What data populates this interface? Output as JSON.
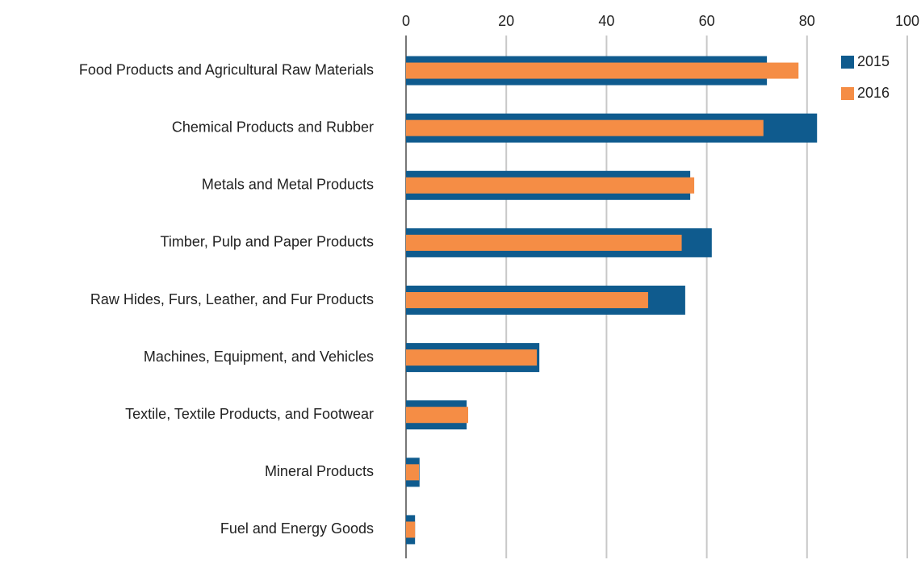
{
  "chart_data": {
    "type": "bar",
    "orientation": "horizontal",
    "categories": [
      "Food Products and Agricultural Raw Materials",
      "Chemical Products and Rubber",
      "Metals and Metal Products",
      "Timber, Pulp and Paper Products",
      "Raw Hides, Furs, Leather, and Fur Products",
      "Machines, Equipment, and Vehicles",
      "Textile, Textile Products, and Footwear",
      "Mineral Products",
      "Fuel and Energy Goods"
    ],
    "series": [
      {
        "name": "2015",
        "color": "#0f5b8e",
        "values": [
          72,
          82,
          56.7,
          61,
          55.7,
          26.6,
          12.1,
          2.7,
          1.8
        ]
      },
      {
        "name": "2016",
        "color": "#f58d45",
        "values": [
          78.3,
          71.3,
          57.5,
          55,
          48.3,
          26.1,
          12.4,
          2.6,
          1.8
        ]
      }
    ],
    "xlim": [
      0,
      100
    ],
    "xticks": [
      0,
      20,
      40,
      60,
      80,
      100
    ],
    "grid": true,
    "legend": "top-right"
  }
}
